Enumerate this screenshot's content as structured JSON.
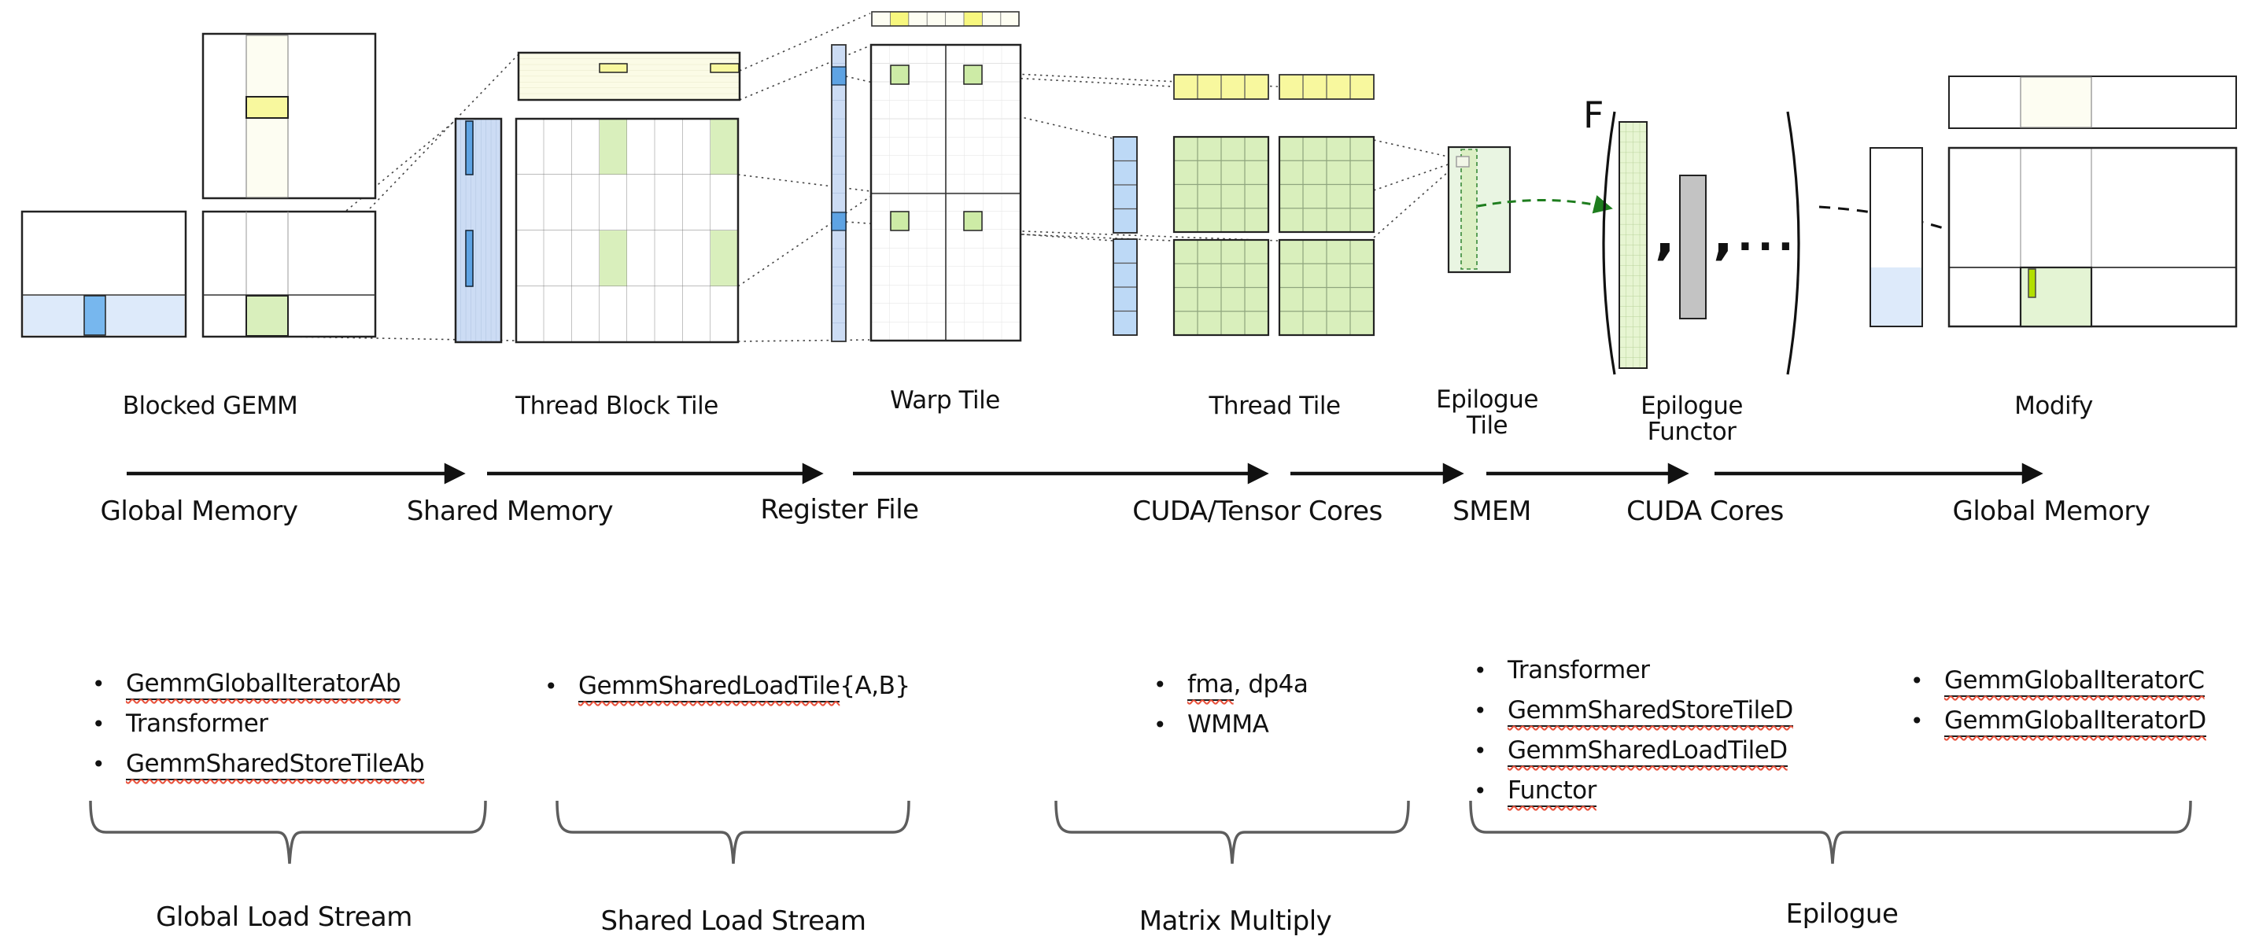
{
  "captions": {
    "blocked_gemm": "Blocked GEMM",
    "thread_block_tile": "Thread Block Tile",
    "warp_tile": "Warp Tile",
    "thread_tile": "Thread Tile",
    "epilogue_tile_line1": "Epilogue",
    "epilogue_tile_line2": "Tile",
    "epilogue_functor_line1": "Epilogue",
    "epilogue_functor_line2": "Functor",
    "modify": "Modify"
  },
  "memory_labels": {
    "global_memory_src": "Global Memory",
    "shared_memory": "Shared Memory",
    "register_file": "Register File",
    "cuda_tensor_cores": "CUDA/Tensor Cores",
    "smem": "SMEM",
    "cuda_cores": "CUDA Cores",
    "global_memory_dst": "Global Memory"
  },
  "functor": {
    "symbol": "F",
    "comma1": ",",
    "comma2": ",",
    "ellipsis": "..."
  },
  "stream_labels": {
    "global_load": "Global Load Stream",
    "shared_load": "Shared Load Stream",
    "matrix_multiply": "Matrix Multiply",
    "epilogue": "Epilogue"
  },
  "lists": {
    "global_load": [
      [
        {
          "text": "GemmGlobalIteratorAb",
          "underline": true
        }
      ],
      [
        {
          "text": "Transformer",
          "underline": false
        }
      ],
      [
        {
          "text": "GemmSharedStoreTileAb",
          "underline": true
        }
      ]
    ],
    "shared_load": [
      [
        {
          "text": "GemmSharedLoadTile",
          "underline": true
        },
        {
          "text": "{A,B}",
          "underline": false
        }
      ]
    ],
    "matrix_multiply": [
      [
        {
          "text": "fma",
          "underline": true
        },
        {
          "text": ", dp4a",
          "underline": false
        }
      ],
      [
        {
          "text": "WMMA",
          "underline": false
        }
      ]
    ],
    "epilogue_main": [
      [
        {
          "text": "Transformer",
          "underline": false
        }
      ],
      [
        {
          "text": "GemmSharedStoreTileD",
          "underline": true
        }
      ],
      [
        {
          "text": "GemmSharedLoadTileD",
          "underline": true
        }
      ],
      [
        {
          "text": "Functor",
          "underline": true
        }
      ]
    ],
    "epilogue_global": [
      [
        {
          "text": "GemmGlobalIteratorC",
          "underline": true
        }
      ],
      [
        {
          "text": "GemmGlobalIteratorD",
          "underline": true
        }
      ]
    ]
  },
  "palette": {
    "light_blue": "#ddeafa",
    "mid_blue": "#77b7ee",
    "strip_blue": "#ccdcf4",
    "cell_blue": "#5ea3e3",
    "pale_blue": "#bdd9f6",
    "ivory": "#fbfbe6",
    "pale_ivory": "#fdfdf2",
    "yellow": "#f8f89e",
    "bright_yellow": "#f7f77e",
    "pale_green": "#d9efbc",
    "mid_green": "#cdeba6",
    "epi_green": "#e9f5e2",
    "epi_col_green": "#dcefc4",
    "functor_green": "#e7f5d2",
    "chartreuse": "#b2df00",
    "gray_fill": "#c3c3c3",
    "green_arrow": "#1e7d1e",
    "squiggle": "#e8503a"
  }
}
